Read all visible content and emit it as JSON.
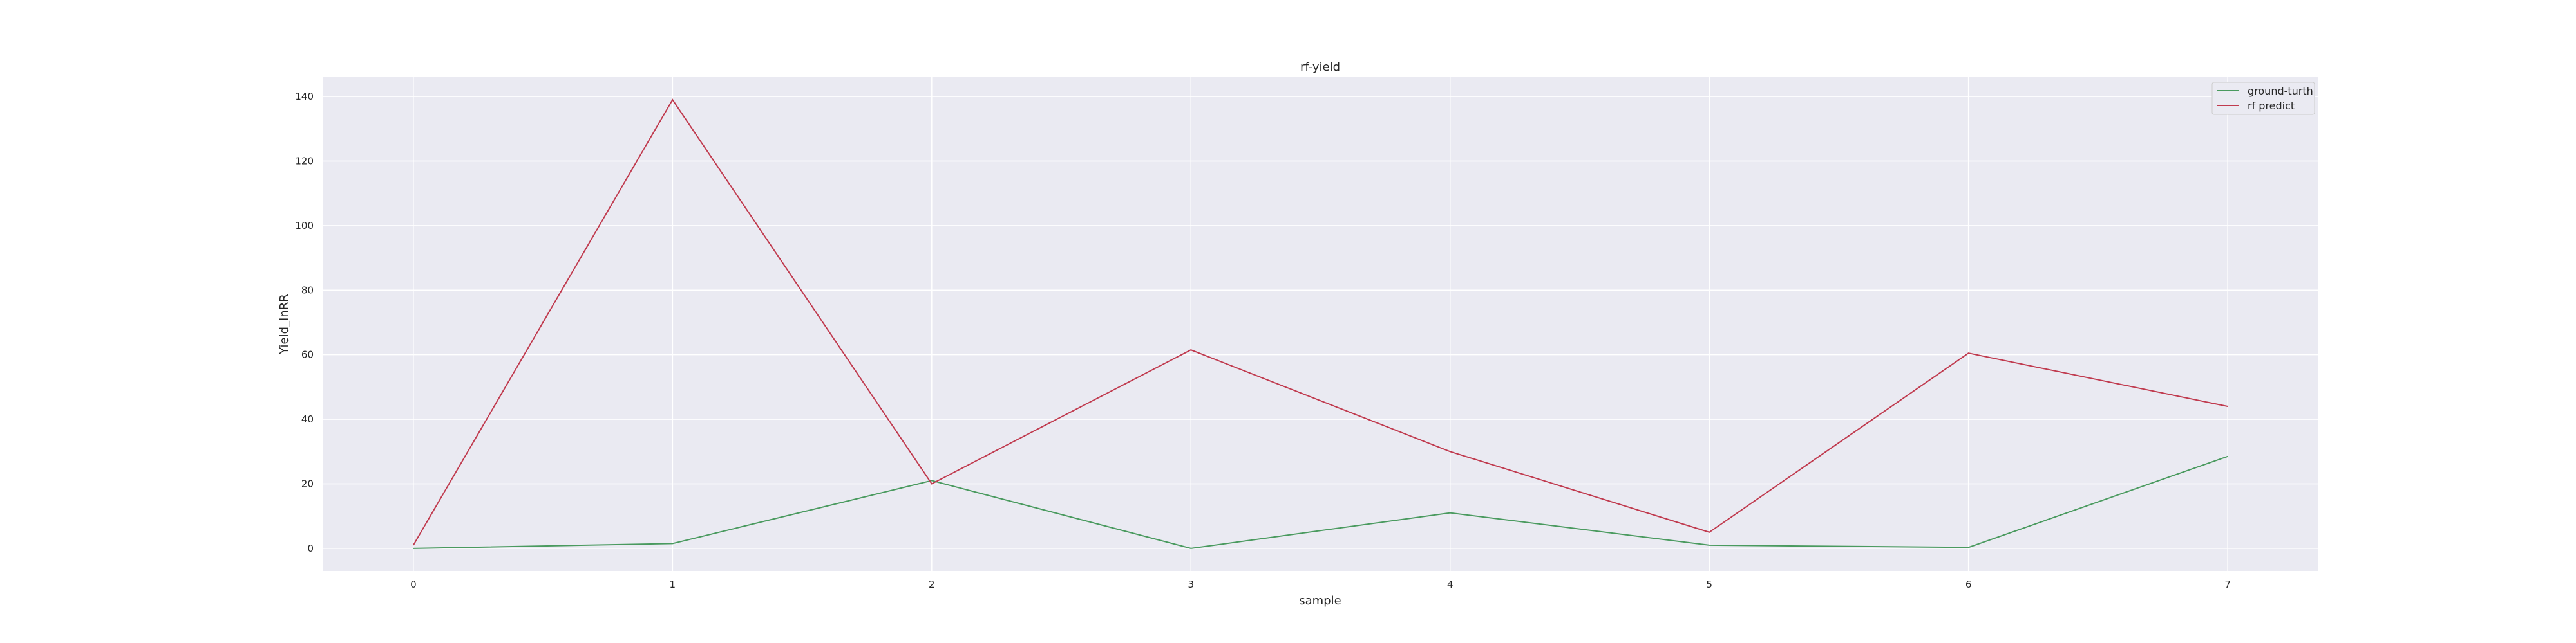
{
  "chart_data": {
    "type": "line",
    "title": "rf-yield",
    "xlabel": "sample",
    "ylabel": "Yield_InRR",
    "x": [
      0,
      1,
      2,
      3,
      4,
      5,
      6,
      7
    ],
    "xticks": [
      "0",
      "1",
      "2",
      "3",
      "4",
      "5",
      "6",
      "7"
    ],
    "yticks": [
      "0",
      "20",
      "40",
      "60",
      "80",
      "100",
      "120",
      "140"
    ],
    "xlim": [
      -0.35,
      7.35
    ],
    "ylim": [
      -7,
      146
    ],
    "grid": true,
    "legend": "top-right",
    "series": [
      {
        "name": "ground-turth",
        "color": "#4a9a5f",
        "values": [
          0,
          1.5,
          21,
          0,
          11,
          1,
          0.3,
          28.5
        ]
      },
      {
        "name": "rf predict",
        "color": "#c03b4f",
        "values": [
          1,
          139,
          20,
          61.5,
          30,
          5,
          60.5,
          44
        ]
      }
    ]
  }
}
